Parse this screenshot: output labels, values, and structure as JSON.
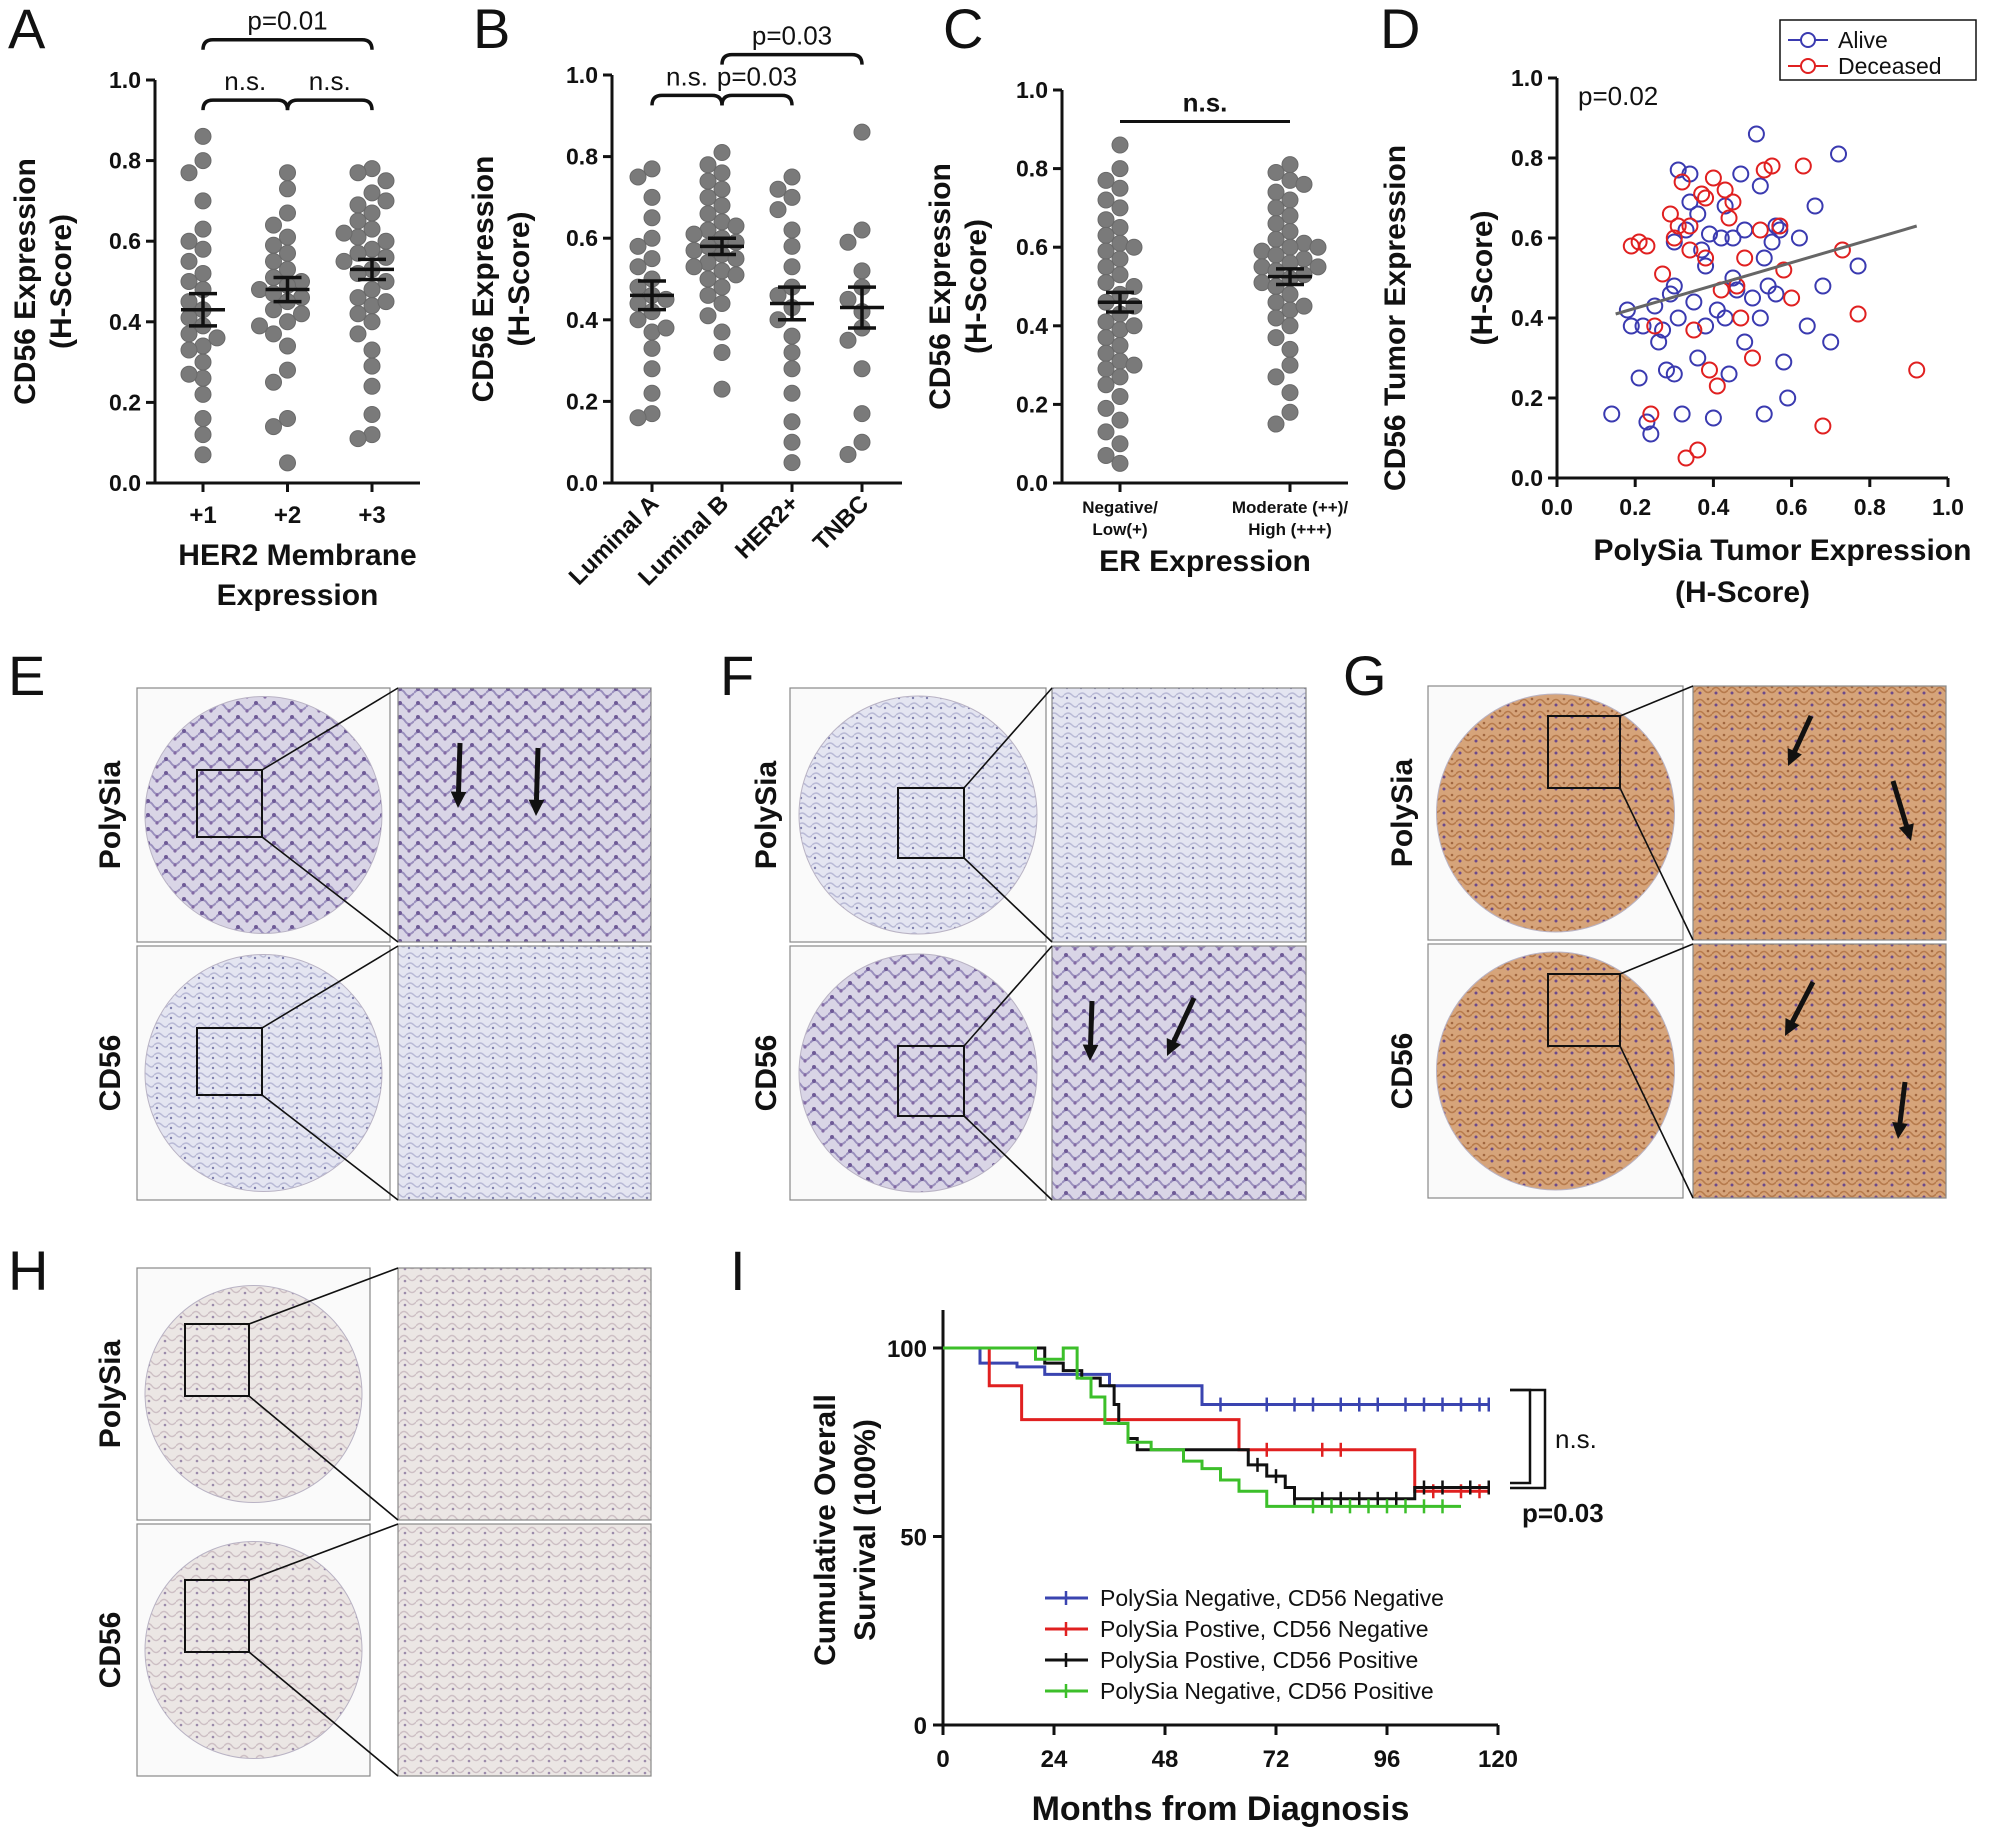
{
  "panels": {
    "A": "A",
    "B": "B",
    "C": "C",
    "D": "D",
    "E": "E",
    "F": "F",
    "G": "G",
    "H": "H",
    "I": "I"
  },
  "micro": {
    "row_top": "PolySia",
    "row_bottom": "CD56",
    "stain_colors": {
      "blue_bg": "#dfe1ef",
      "brown_bg": "#d7a67b",
      "pale_bg": "#e9e3e0"
    }
  },
  "chart_data": [
    {
      "panel": "A",
      "type": "scatter",
      "ylabel_line1": "CD56 Expression",
      "ylabel_line2": "(H-Score)",
      "xlabel_line1": "HER2 Membrane",
      "xlabel_line2": "Expression",
      "categories": [
        "+1",
        "+2",
        "+3"
      ],
      "yticks": [
        "0.0",
        "0.2",
        "0.4",
        "0.6",
        "0.8",
        "1.0"
      ],
      "ylim": [
        0,
        1.0
      ],
      "means": [
        0.43,
        0.48,
        0.53
      ],
      "sems": [
        0.04,
        0.03,
        0.025
      ],
      "points": [
        [
          0.86,
          0.8,
          0.77,
          0.7,
          0.63,
          0.6,
          0.58,
          0.55,
          0.52,
          0.5,
          0.48,
          0.45,
          0.43,
          0.41,
          0.39,
          0.37,
          0.34,
          0.3,
          0.26,
          0.22,
          0.16,
          0.12,
          0.07,
          0.36,
          0.33,
          0.27
        ],
        [
          0.77,
          0.73,
          0.67,
          0.64,
          0.61,
          0.59,
          0.57,
          0.55,
          0.53,
          0.51,
          0.5,
          0.49,
          0.48,
          0.47,
          0.46,
          0.45,
          0.43,
          0.4,
          0.37,
          0.34,
          0.28,
          0.25,
          0.16,
          0.14,
          0.05,
          0.42,
          0.39
        ],
        [
          0.78,
          0.77,
          0.75,
          0.72,
          0.69,
          0.67,
          0.65,
          0.63,
          0.61,
          0.6,
          0.58,
          0.57,
          0.56,
          0.55,
          0.53,
          0.52,
          0.5,
          0.48,
          0.46,
          0.44,
          0.42,
          0.4,
          0.37,
          0.33,
          0.29,
          0.24,
          0.17,
          0.12,
          0.11,
          0.7,
          0.62,
          0.45
        ]
      ],
      "brackets": [
        {
          "from": 0,
          "to": 1,
          "label": "n.s.",
          "level": 0.95
        },
        {
          "from": 1,
          "to": 2,
          "label": "n.s.",
          "level": 0.95
        },
        {
          "from": 0,
          "to": 2,
          "label": "p=0.01",
          "level": 1.1
        }
      ]
    },
    {
      "panel": "B",
      "type": "scatter",
      "ylabel_line1": "CD56 Expression",
      "ylabel_line2": "(H-Score)",
      "categories": [
        "Luminal A",
        "Luminal B",
        "HER2+",
        "TNBC"
      ],
      "yticks": [
        "0.0",
        "0.2",
        "0.4",
        "0.6",
        "0.8",
        "1.0"
      ],
      "ylim": [
        0,
        1.0
      ],
      "means": [
        0.46,
        0.58,
        0.44,
        0.43
      ],
      "sems": [
        0.035,
        0.02,
        0.04,
        0.05
      ],
      "points": [
        [
          0.77,
          0.75,
          0.7,
          0.65,
          0.6,
          0.58,
          0.55,
          0.53,
          0.5,
          0.48,
          0.46,
          0.44,
          0.42,
          0.4,
          0.37,
          0.33,
          0.28,
          0.22,
          0.17,
          0.16,
          0.38,
          0.45
        ],
        [
          0.81,
          0.78,
          0.76,
          0.74,
          0.72,
          0.7,
          0.68,
          0.66,
          0.64,
          0.63,
          0.62,
          0.61,
          0.6,
          0.59,
          0.58,
          0.57,
          0.56,
          0.55,
          0.54,
          0.53,
          0.52,
          0.51,
          0.5,
          0.48,
          0.46,
          0.44,
          0.41,
          0.37,
          0.32,
          0.23
        ],
        [
          0.75,
          0.72,
          0.7,
          0.67,
          0.62,
          0.58,
          0.53,
          0.48,
          0.46,
          0.43,
          0.4,
          0.36,
          0.32,
          0.28,
          0.22,
          0.15,
          0.1,
          0.05
        ],
        [
          0.86,
          0.62,
          0.59,
          0.52,
          0.48,
          0.45,
          0.42,
          0.38,
          0.35,
          0.28,
          0.17,
          0.1,
          0.07
        ]
      ],
      "brackets": [
        {
          "from": 0,
          "to": 1,
          "label": "n.s.",
          "level": 0.95
        },
        {
          "from": 1,
          "to": 2,
          "label": "p=0.03",
          "level": 0.95
        },
        {
          "from": 1,
          "to": 3,
          "label": "p=0.03",
          "level": 1.05
        }
      ]
    },
    {
      "panel": "C",
      "type": "scatter",
      "ylabel_line1": "CD56 Expression",
      "ylabel_line2": "(H-Score)",
      "xlabel": "ER Expression",
      "categories": [
        {
          "line1": "Negative/",
          "line2": "Low(+)"
        },
        {
          "line1": "Moderate (++)/",
          "line2": "High (+++)"
        }
      ],
      "yticks": [
        "0.0",
        "0.2",
        "0.4",
        "0.6",
        "0.8",
        "1.0"
      ],
      "ylim": [
        0,
        1.0
      ],
      "means": [
        0.46,
        0.525
      ],
      "sems": [
        0.025,
        0.02
      ],
      "points": [
        [
          0.86,
          0.8,
          0.77,
          0.75,
          0.72,
          0.7,
          0.67,
          0.65,
          0.63,
          0.61,
          0.59,
          0.57,
          0.55,
          0.53,
          0.51,
          0.5,
          0.48,
          0.46,
          0.45,
          0.43,
          0.41,
          0.39,
          0.37,
          0.35,
          0.33,
          0.31,
          0.29,
          0.27,
          0.25,
          0.22,
          0.19,
          0.16,
          0.13,
          0.1,
          0.07,
          0.05,
          0.6,
          0.4,
          0.3
        ],
        [
          0.81,
          0.79,
          0.77,
          0.76,
          0.74,
          0.72,
          0.7,
          0.68,
          0.66,
          0.64,
          0.62,
          0.61,
          0.6,
          0.59,
          0.58,
          0.57,
          0.56,
          0.55,
          0.54,
          0.53,
          0.52,
          0.51,
          0.5,
          0.48,
          0.46,
          0.44,
          0.42,
          0.4,
          0.37,
          0.34,
          0.3,
          0.27,
          0.23,
          0.18,
          0.15,
          0.6,
          0.55,
          0.45
        ]
      ],
      "brackets": [
        {
          "from": 0,
          "to": 1,
          "label": "n.s.",
          "level": 0.92,
          "bar_only": true
        }
      ]
    },
    {
      "panel": "D",
      "type": "scatter",
      "ylabel_line1": "CD56 Tumor Expression",
      "ylabel_line2": "(H-Score)",
      "xlabel_line1": "PolySia Tumor Expression",
      "xlabel_line2": "(H-Score)",
      "annotation": "p=0.02",
      "xticks": [
        "0.0",
        "0.2",
        "0.4",
        "0.6",
        "0.8",
        "1.0"
      ],
      "yticks": [
        "0.0",
        "0.2",
        "0.4",
        "0.6",
        "0.8",
        "1.0"
      ],
      "xlim": [
        0,
        1.0
      ],
      "ylim": [
        0,
        1.0
      ],
      "fit": {
        "x": [
          0.15,
          0.92
        ],
        "y": [
          0.41,
          0.63
        ]
      },
      "legend": [
        {
          "name": "Alive",
          "color": "#3a3ab0"
        },
        {
          "name": "Deceased",
          "color": "#e02020"
        }
      ],
      "series": [
        {
          "name": "Alive",
          "points": [
            [
              0.14,
              0.16
            ],
            [
              0.18,
              0.42
            ],
            [
              0.19,
              0.38
            ],
            [
              0.21,
              0.25
            ],
            [
              0.22,
              0.38
            ],
            [
              0.23,
              0.14
            ],
            [
              0.24,
              0.11
            ],
            [
              0.25,
              0.43
            ],
            [
              0.26,
              0.34
            ],
            [
              0.27,
              0.37
            ],
            [
              0.28,
              0.27
            ],
            [
              0.29,
              0.46
            ],
            [
              0.3,
              0.26
            ],
            [
              0.3,
              0.59
            ],
            [
              0.31,
              0.77
            ],
            [
              0.31,
              0.4
            ],
            [
              0.32,
              0.16
            ],
            [
              0.33,
              0.62
            ],
            [
              0.34,
              0.69
            ],
            [
              0.34,
              0.76
            ],
            [
              0.35,
              0.44
            ],
            [
              0.36,
              0.3
            ],
            [
              0.37,
              0.57
            ],
            [
              0.38,
              0.53
            ],
            [
              0.38,
              0.38
            ],
            [
              0.39,
              0.61
            ],
            [
              0.4,
              0.15
            ],
            [
              0.41,
              0.42
            ],
            [
              0.42,
              0.6
            ],
            [
              0.43,
              0.4
            ],
            [
              0.43,
              0.68
            ],
            [
              0.44,
              0.26
            ],
            [
              0.45,
              0.5
            ],
            [
              0.46,
              0.47
            ],
            [
              0.47,
              0.76
            ],
            [
              0.48,
              0.62
            ],
            [
              0.48,
              0.34
            ],
            [
              0.5,
              0.45
            ],
            [
              0.51,
              0.86
            ],
            [
              0.52,
              0.73
            ],
            [
              0.53,
              0.55
            ],
            [
              0.53,
              0.16
            ],
            [
              0.54,
              0.48
            ],
            [
              0.55,
              0.59
            ],
            [
              0.56,
              0.63
            ],
            [
              0.56,
              0.46
            ],
            [
              0.57,
              0.62
            ],
            [
              0.58,
              0.29
            ],
            [
              0.59,
              0.2
            ],
            [
              0.62,
              0.6
            ],
            [
              0.64,
              0.38
            ],
            [
              0.66,
              0.68
            ],
            [
              0.68,
              0.48
            ],
            [
              0.7,
              0.34
            ],
            [
              0.72,
              0.81
            ],
            [
              0.77,
              0.53
            ],
            [
              0.52,
              0.4
            ],
            [
              0.45,
              0.6
            ],
            [
              0.3,
              0.48
            ],
            [
              0.36,
              0.66
            ]
          ]
        },
        {
          "name": "Deceased",
          "points": [
            [
              0.19,
              0.58
            ],
            [
              0.21,
              0.59
            ],
            [
              0.23,
              0.58
            ],
            [
              0.24,
              0.16
            ],
            [
              0.25,
              0.38
            ],
            [
              0.27,
              0.51
            ],
            [
              0.29,
              0.66
            ],
            [
              0.3,
              0.6
            ],
            [
              0.31,
              0.63
            ],
            [
              0.32,
              0.74
            ],
            [
              0.33,
              0.05
            ],
            [
              0.34,
              0.57
            ],
            [
              0.35,
              0.37
            ],
            [
              0.36,
              0.07
            ],
            [
              0.37,
              0.71
            ],
            [
              0.38,
              0.55
            ],
            [
              0.39,
              0.27
            ],
            [
              0.4,
              0.75
            ],
            [
              0.41,
              0.23
            ],
            [
              0.42,
              0.47
            ],
            [
              0.43,
              0.72
            ],
            [
              0.44,
              0.65
            ],
            [
              0.45,
              0.69
            ],
            [
              0.46,
              0.48
            ],
            [
              0.47,
              0.4
            ],
            [
              0.48,
              0.55
            ],
            [
              0.5,
              0.3
            ],
            [
              0.52,
              0.62
            ],
            [
              0.53,
              0.77
            ],
            [
              0.55,
              0.78
            ],
            [
              0.57,
              0.63
            ],
            [
              0.58,
              0.52
            ],
            [
              0.6,
              0.45
            ],
            [
              0.63,
              0.78
            ],
            [
              0.68,
              0.13
            ],
            [
              0.73,
              0.57
            ],
            [
              0.77,
              0.41
            ],
            [
              0.92,
              0.27
            ],
            [
              0.38,
              0.7
            ],
            [
              0.34,
              0.63
            ]
          ]
        }
      ]
    },
    {
      "panel": "I",
      "type": "line",
      "ylabel_line1": "Cumulative Overall",
      "ylabel_line2": "Survival (100%)",
      "xlabel": "Months from Diagnosis",
      "xticks": [
        "0",
        "24",
        "48",
        "72",
        "96",
        "120"
      ],
      "yticks": [
        "0",
        "50",
        "100"
      ],
      "xlim": [
        0,
        120
      ],
      "ylim": [
        0,
        100
      ],
      "annotations": [
        {
          "label": "n.s.",
          "bold": false
        },
        {
          "label": "p=0.03",
          "bold": true
        }
      ],
      "series": [
        {
          "name": "PolySia Negative, CD56 Negative",
          "color": "#3a44b0",
          "steps": [
            [
              0,
              100
            ],
            [
              8,
              96
            ],
            [
              16,
              95
            ],
            [
              22,
              93
            ],
            [
              36,
              90
            ],
            [
              56,
              85
            ],
            [
              118,
              85
            ]
          ],
          "censors": [
            60,
            70,
            76,
            80,
            86,
            90,
            94,
            100,
            104,
            108,
            112,
            116,
            118
          ]
        },
        {
          "name": "PolySia Postive, CD56 Negative",
          "color": "#e02020",
          "steps": [
            [
              0,
              100
            ],
            [
              10,
              90
            ],
            [
              17,
              81
            ],
            [
              38,
              81
            ],
            [
              64,
              73
            ],
            [
              86,
              73
            ],
            [
              102,
              62
            ],
            [
              118,
              62
            ]
          ],
          "censors": [
            70,
            82,
            86,
            106,
            112,
            116
          ]
        },
        {
          "name": "PolySia Postive, CD56 Positive",
          "color": "#111111",
          "steps": [
            [
              0,
              100
            ],
            [
              22,
              96
            ],
            [
              26,
              94
            ],
            [
              30,
              92
            ],
            [
              34,
              90
            ],
            [
              37,
              85
            ],
            [
              38,
              80
            ],
            [
              40,
              76
            ],
            [
              42,
              73
            ],
            [
              56,
              73
            ],
            [
              66,
              69
            ],
            [
              70,
              66
            ],
            [
              74,
              63
            ],
            [
              76,
              60
            ],
            [
              100,
              60
            ],
            [
              102,
              63
            ],
            [
              118,
              63
            ]
          ],
          "censors": [
            68,
            72,
            76,
            82,
            86,
            90,
            94,
            98,
            104,
            108,
            114,
            118
          ]
        },
        {
          "name": "PolySia Negative, CD56 Positive",
          "color": "#3cbf2a",
          "steps": [
            [
              0,
              100
            ],
            [
              20,
              97
            ],
            [
              26,
              100
            ],
            [
              29,
              92
            ],
            [
              32,
              87
            ],
            [
              35,
              80
            ],
            [
              40,
              75
            ],
            [
              45,
              73
            ],
            [
              52,
              70
            ],
            [
              56,
              68
            ],
            [
              60,
              65
            ],
            [
              64,
              62
            ],
            [
              70,
              58
            ],
            [
              112,
              58
            ]
          ],
          "censors": [
            80,
            84,
            88,
            92,
            96,
            100,
            104,
            108
          ]
        }
      ]
    }
  ]
}
